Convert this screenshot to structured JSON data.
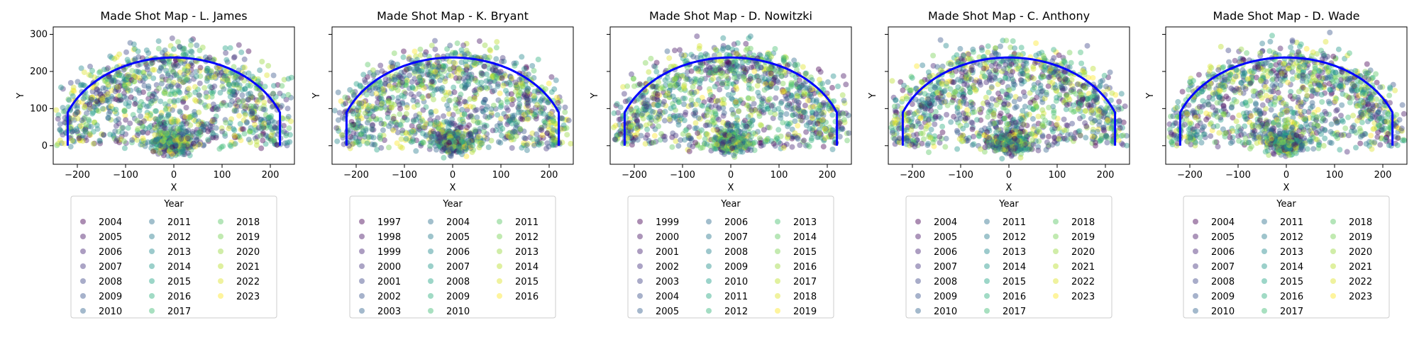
{
  "figure": {
    "background": "#ffffff"
  },
  "legend_title": "Year",
  "arc_color": "#0000ff",
  "chart_data": [
    {
      "type": "scatter",
      "title": "Made Shot Map - L. James",
      "xlabel": "X",
      "ylabel": "Y",
      "xlim": [
        -250,
        250
      ],
      "ylim": [
        -50,
        320
      ],
      "xticks": [
        -200,
        -100,
        0,
        100,
        200
      ],
      "yticks": [
        0,
        100,
        200,
        300
      ],
      "show_yticklabels": true,
      "grid": false,
      "legend": {
        "title": "Year",
        "placement": "below",
        "columns": 3,
        "entries": [
          "2004",
          "2005",
          "2006",
          "2007",
          "2008",
          "2009",
          "2010",
          "2011",
          "2012",
          "2013",
          "2014",
          "2015",
          "2016",
          "2017",
          "2018",
          "2019",
          "2020",
          "2021",
          "2022",
          "2023"
        ]
      },
      "colors": [
        "#440154",
        "#481a6c",
        "#472f7d",
        "#414487",
        "#39568c",
        "#31688e",
        "#2a788e",
        "#23888e",
        "#1f988b",
        "#22a884",
        "#35b779",
        "#54c568",
        "#7ad151",
        "#a5db36",
        "#d2e21b",
        "#fde725",
        "#fde725",
        "#fde725",
        "#fde725",
        "#fde725"
      ]
    },
    {
      "type": "scatter",
      "title": "Made Shot Map - K. Bryant",
      "xlabel": "X",
      "ylabel": "Y",
      "xlim": [
        -250,
        250
      ],
      "ylim": [
        -50,
        320
      ],
      "xticks": [
        -200,
        -100,
        0,
        100,
        200
      ],
      "yticks": [
        0,
        100,
        200,
        300
      ],
      "show_yticklabels": false,
      "grid": false,
      "legend": {
        "title": "Year",
        "placement": "below",
        "columns": 3,
        "entries": [
          "1997",
          "1998",
          "1999",
          "2000",
          "2001",
          "2002",
          "2003",
          "2004",
          "2005",
          "2006",
          "2007",
          "2008",
          "2009",
          "2010",
          "2011",
          "2012",
          "2013",
          "2014",
          "2015",
          "2016"
        ]
      }
    },
    {
      "type": "scatter",
      "title": "Made Shot Map - D. Nowitzki",
      "xlabel": "X",
      "ylabel": "Y",
      "xlim": [
        -250,
        250
      ],
      "ylim": [
        -50,
        320
      ],
      "xticks": [
        -200,
        -100,
        0,
        100,
        200
      ],
      "yticks": [
        0,
        100,
        200,
        300
      ],
      "show_yticklabels": false,
      "grid": false,
      "legend": {
        "title": "Year",
        "placement": "below",
        "columns": 3,
        "entries": [
          "1999",
          "2000",
          "2001",
          "2002",
          "2003",
          "2004",
          "2005",
          "2006",
          "2007",
          "2008",
          "2009",
          "2010",
          "2011",
          "2012",
          "2013",
          "2014",
          "2015",
          "2016",
          "2017",
          "2018",
          "2019"
        ]
      }
    },
    {
      "type": "scatter",
      "title": "Made Shot Map - C. Anthony",
      "xlabel": "X",
      "ylabel": "Y",
      "xlim": [
        -250,
        250
      ],
      "ylim": [
        -50,
        320
      ],
      "xticks": [
        -200,
        -100,
        0,
        100,
        200
      ],
      "yticks": [
        0,
        100,
        200,
        300
      ],
      "show_yticklabels": false,
      "grid": false,
      "legend": {
        "title": "Year",
        "placement": "below",
        "columns": 3,
        "entries": [
          "2004",
          "2005",
          "2006",
          "2007",
          "2008",
          "2009",
          "2010",
          "2011",
          "2012",
          "2013",
          "2014",
          "2015",
          "2016",
          "2017",
          "2018",
          "2019",
          "2020",
          "2021",
          "2022",
          "2023"
        ]
      }
    },
    {
      "type": "scatter",
      "title": "Made Shot Map - D. Wade",
      "xlabel": "X",
      "ylabel": "Y",
      "xlim": [
        -250,
        250
      ],
      "ylim": [
        -50,
        320
      ],
      "xticks": [
        -200,
        -100,
        0,
        100,
        200
      ],
      "yticks": [
        0,
        100,
        200,
        300
      ],
      "show_yticklabels": false,
      "grid": false,
      "legend": {
        "title": "Year",
        "placement": "below",
        "columns": 3,
        "entries": [
          "2004",
          "2005",
          "2006",
          "2007",
          "2008",
          "2009",
          "2010",
          "2011",
          "2012",
          "2013",
          "2014",
          "2015",
          "2016",
          "2017",
          "2018",
          "2019",
          "2020",
          "2021",
          "2022",
          "2023"
        ]
      }
    }
  ]
}
